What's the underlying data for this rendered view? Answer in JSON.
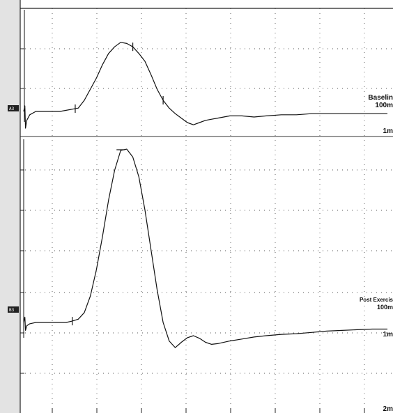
{
  "chart_data": [
    {
      "type": "line",
      "panel": "A3",
      "channel_label": "A3",
      "trace_label": "Baselin",
      "sweep_label": "100m",
      "gain_label": "1m",
      "series": [
        {
          "x": [
            0,
            0.8,
            1.2,
            2,
            4,
            8,
            12,
            16,
            20,
            24,
            28,
            32,
            36,
            40,
            44,
            48,
            52,
            56,
            60,
            64,
            68,
            72,
            76,
            80,
            84,
            88,
            92,
            96,
            100,
            104,
            108,
            112,
            116,
            120,
            124,
            128,
            136,
            144,
            152,
            160,
            170,
            180,
            190,
            200,
            210,
            220,
            230,
            240
          ],
          "y": [
            0,
            0.05,
            -0.15,
            -0.08,
            -0.03,
            0,
            0,
            0,
            0,
            0,
            0.01,
            0.02,
            0.03,
            0.1,
            0.2,
            0.3,
            0.42,
            0.52,
            0.58,
            0.62,
            0.61,
            0.58,
            0.52,
            0.45,
            0.33,
            0.2,
            0.1,
            0.03,
            -0.02,
            -0.06,
            -0.1,
            -0.12,
            -0.1,
            -0.08,
            -0.07,
            -0.06,
            -0.04,
            -0.04,
            -0.05,
            -0.04,
            -0.03,
            -0.03,
            -0.02,
            -0.02,
            -0.02,
            -0.02,
            -0.02,
            -0.02
          ]
        }
      ],
      "markers_x": [
        34,
        72,
        92
      ]
    },
    {
      "type": "line",
      "panel": "B3",
      "channel_label": "B3",
      "trace_label": "Post Exercis",
      "sweep_label": "100m",
      "gain_label": "1m",
      "extra_label": "2m",
      "series": [
        {
          "x": [
            0,
            0.8,
            1.2,
            2,
            4,
            8,
            12,
            16,
            20,
            24,
            28,
            32,
            36,
            40,
            44,
            48,
            52,
            56,
            60,
            64,
            68,
            72,
            76,
            80,
            84,
            88,
            92,
            96,
            100,
            104,
            108,
            112,
            116,
            120,
            124,
            128,
            136,
            144,
            152,
            160,
            170,
            180,
            190,
            200,
            210,
            220,
            230,
            240
          ],
          "y": [
            0,
            0.08,
            -0.12,
            -0.05,
            -0.02,
            0,
            0,
            0,
            0,
            0,
            0,
            0.02,
            0.05,
            0.15,
            0.4,
            0.8,
            1.3,
            1.85,
            2.3,
            2.6,
            2.62,
            2.5,
            2.2,
            1.7,
            1.1,
            0.5,
            0,
            -0.28,
            -0.38,
            -0.3,
            -0.23,
            -0.2,
            -0.24,
            -0.3,
            -0.33,
            -0.32,
            -0.28,
            -0.25,
            -0.22,
            -0.2,
            -0.18,
            -0.17,
            -0.15,
            -0.13,
            -0.12,
            -0.11,
            -0.1,
            -0.1
          ]
        }
      ],
      "markers_x": [
        32,
        64
      ]
    }
  ]
}
